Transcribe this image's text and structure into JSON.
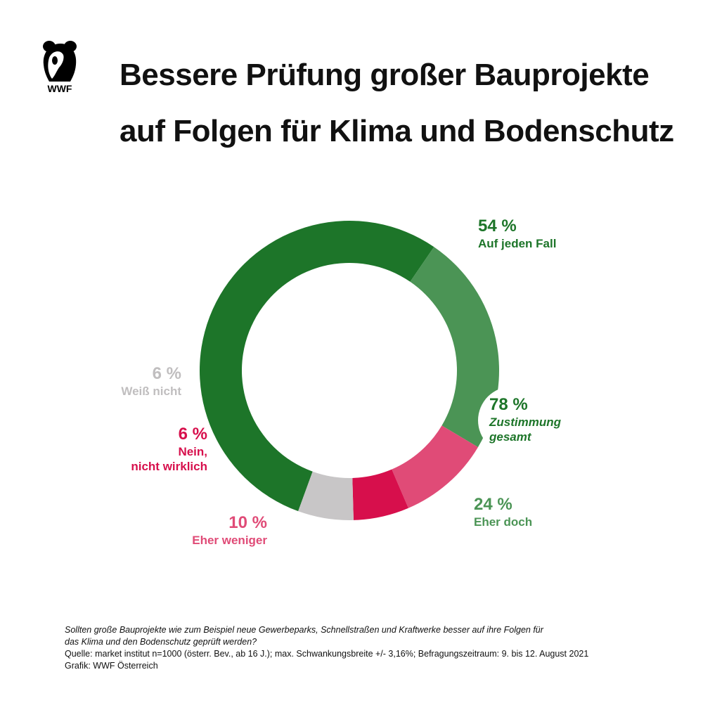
{
  "logo": {
    "text": "WWF"
  },
  "title": {
    "line1": "Bessere Prüfung großer Bauprojekte",
    "line2": "auf Folgen für Klima und Bodenschutz"
  },
  "colors": {
    "auf_jeden_fall": "#1d7529",
    "eher_doch": "#4b9455",
    "eher_weniger": "#e04b77",
    "nein": "#d70f4c",
    "weiss_nicht": "#c8c6c7"
  },
  "chart_data": {
    "type": "pie",
    "categories": [
      "Auf jeden Fall",
      "Eher doch",
      "Eher weniger",
      "Nein, nicht wirklich",
      "Weiß nicht"
    ],
    "values": [
      54,
      24,
      10,
      6,
      6
    ],
    "labels": {
      "auf_jeden_fall": {
        "pct": "54 %",
        "name": "Auf jeden Fall"
      },
      "eher_doch": {
        "pct": "24 %",
        "name": "Eher doch"
      },
      "eher_weniger": {
        "pct": "10 %",
        "name": "Eher weniger"
      },
      "nein": {
        "pct": "6 %",
        "name1": "Nein,",
        "name2": "nicht wirklich"
      },
      "weiss_nicht": {
        "pct": "6 %",
        "name": "Weiß nicht"
      },
      "zustimmung": {
        "pct": "78 %",
        "name1": "Zustimmung",
        "name2": "gesamt"
      }
    }
  },
  "footer": {
    "question_line1": "Sollten große Bauprojekte wie zum Beispiel neue Gewerbeparks, Schnellstraßen und Kraftwerke besser auf ihre Folgen für",
    "question_line2": "das Klima und den Bodenschutz geprüft werden?",
    "source": "Quelle: market institut n=1000 (österr. Bev., ab 16 J.); max. Schwankungsbreite +/- 3,16%; Befragungszeitraum: 9. bis 12. August 2021",
    "credit": "Grafik: WWF Österreich"
  }
}
